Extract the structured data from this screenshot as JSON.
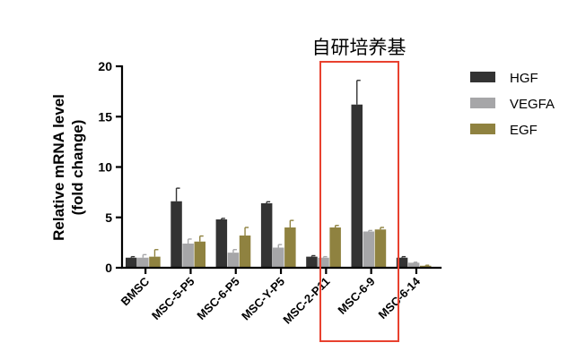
{
  "chart_data": {
    "type": "bar",
    "ylabel": [
      "Relative mRNA level",
      "(fold change)"
    ],
    "ylim": [
      0,
      20
    ],
    "yticks": [
      0,
      5,
      10,
      15,
      20
    ],
    "categories": [
      "BMSC",
      "MSC-5-P5",
      "MSC-6-P5",
      "MSC-Y-P5",
      "MSC-2-P11",
      "MSC-6-9",
      "MSC-6-14"
    ],
    "series": [
      {
        "name": "HGF",
        "color": "#333333",
        "values": [
          1.0,
          6.6,
          4.8,
          6.4,
          1.1,
          16.2,
          1.0
        ],
        "errors": [
          0.1,
          1.3,
          0.1,
          0.15,
          0.1,
          2.4,
          0.1
        ]
      },
      {
        "name": "VEGFA",
        "color": "#a6a6a8",
        "values": [
          1.0,
          2.4,
          1.5,
          2.0,
          1.0,
          3.6,
          0.5
        ],
        "errors": [
          0.3,
          0.45,
          0.3,
          0.3,
          0.1,
          0.1,
          0.05
        ]
      },
      {
        "name": "EGF",
        "color": "#8f8240",
        "values": [
          1.1,
          2.6,
          3.2,
          4.0,
          4.0,
          3.8,
          0.2
        ],
        "errors": [
          0.7,
          0.55,
          0.8,
          0.7,
          0.2,
          0.2,
          0.05
        ]
      }
    ],
    "grid": false,
    "legend_position": "right",
    "annotation": {
      "text": "自研培养基",
      "box_color": "#e8412f",
      "highlight_categories": [
        "MSC-6-9",
        "MSC-6-14"
      ]
    }
  }
}
